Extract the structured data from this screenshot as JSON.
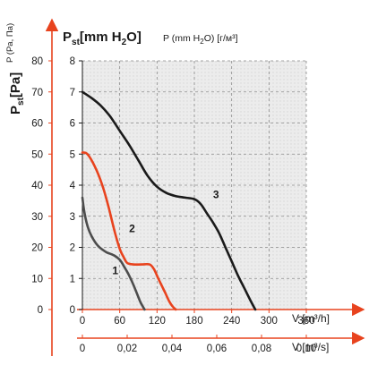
{
  "chart_data": {
    "type": "line",
    "title": "",
    "left_axis": {
      "label_main": "P",
      "label_sub": "st",
      "label_unit": "[Pa]",
      "ticks": [
        0,
        10,
        20,
        30,
        40,
        50,
        60,
        70,
        80
      ],
      "ylim": [
        0,
        80
      ]
    },
    "inner_axis": {
      "label_main": "P",
      "label_sub": "st",
      "label_unit": "[mm H",
      "label_sub2": "2",
      "label_end": "O]",
      "ticks": [
        0,
        1,
        2,
        3,
        4,
        5,
        6,
        7,
        8
      ],
      "ylim": [
        0,
        8
      ]
    },
    "top_left_note": "P (Pa, Па)",
    "top_note_prefix": "P (mm H",
    "top_note_sub": "2",
    "top_note_suffix": "O) [г/м³]",
    "x_axis_m3h": {
      "label": "V [m³/h]",
      "ticks": [
        0,
        60,
        120,
        180,
        240,
        300,
        360
      ],
      "xlim": [
        0,
        360
      ]
    },
    "x_axis_m3s": {
      "label": "V [m³/s]",
      "tick_labels": [
        "0",
        "0,02",
        "0,04",
        "0,06",
        "0,08",
        "0,10"
      ],
      "tick_values": [
        0,
        0.02,
        0.04,
        0.06,
        0.08,
        0.1
      ]
    },
    "grid": true,
    "series": [
      {
        "name": "1",
        "color": "#4d4d4d",
        "x": [
          0,
          3,
          8,
          15,
          25,
          38,
          50,
          60,
          68,
          75,
          82,
          88,
          93,
          97,
          100
        ],
        "y": [
          3.6,
          3.15,
          2.7,
          2.35,
          2.05,
          1.85,
          1.75,
          1.6,
          1.35,
          1.1,
          0.8,
          0.5,
          0.25,
          0.1,
          0
        ]
      },
      {
        "name": "2",
        "color": "#e8431e",
        "x": [
          0,
          8,
          20,
          32,
          42,
          52,
          60,
          66,
          72,
          82,
          95,
          108,
          115,
          122,
          128,
          134,
          140,
          145,
          150
        ],
        "y": [
          5.05,
          5.0,
          4.6,
          4.0,
          3.3,
          2.5,
          1.95,
          1.7,
          1.5,
          1.45,
          1.45,
          1.45,
          1.3,
          1.0,
          0.75,
          0.5,
          0.25,
          0.1,
          0
        ]
      },
      {
        "name": "3",
        "color": "#1a1a1a",
        "x": [
          0,
          15,
          30,
          45,
          60,
          75,
          90,
          105,
          120,
          135,
          150,
          165,
          180,
          190,
          200,
          210,
          220,
          230,
          240,
          250,
          260,
          270,
          278
        ],
        "y": [
          7.0,
          6.8,
          6.55,
          6.2,
          5.75,
          5.3,
          4.8,
          4.3,
          3.95,
          3.75,
          3.65,
          3.6,
          3.55,
          3.4,
          3.1,
          2.8,
          2.45,
          2.0,
          1.55,
          1.1,
          0.7,
          0.3,
          0
        ]
      }
    ]
  }
}
